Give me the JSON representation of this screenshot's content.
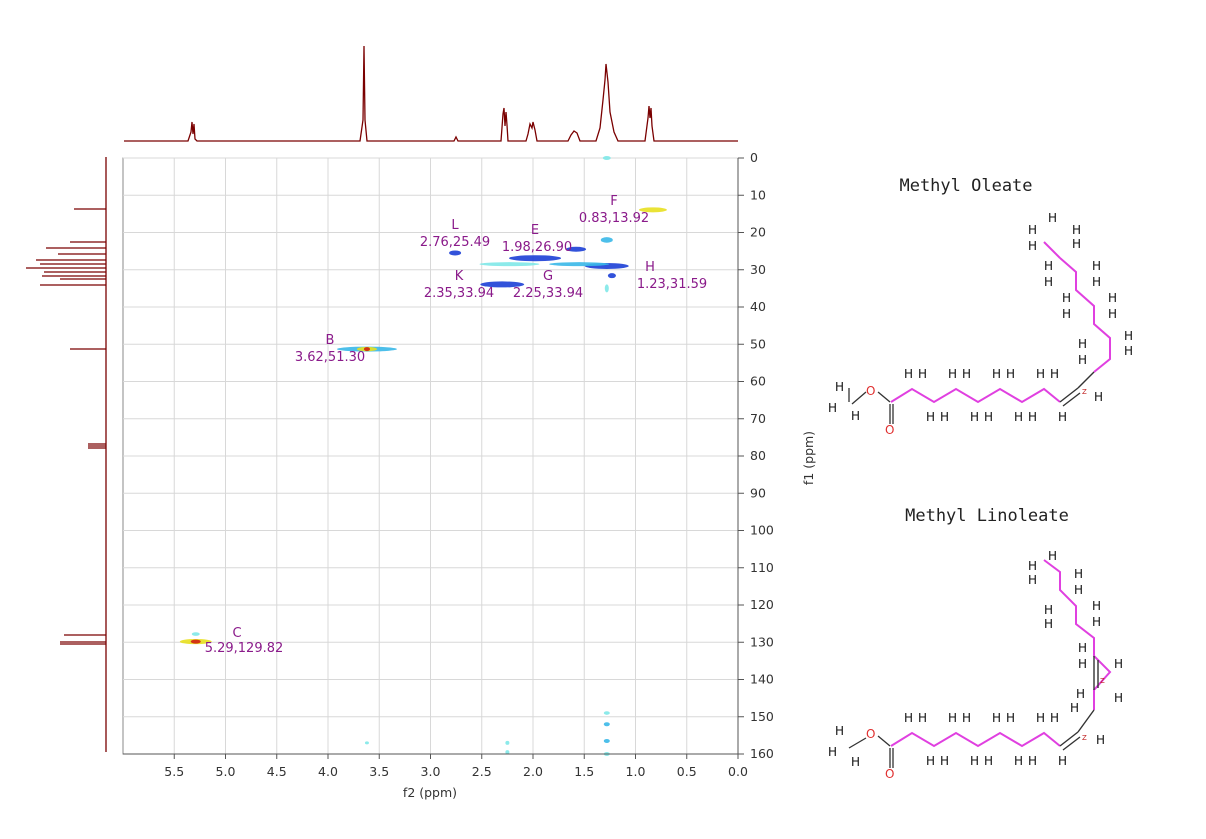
{
  "chart_data": {
    "type": "heatmap",
    "subtype": "2D HSQC NMR contour plot",
    "xlabel": "f2 (ppm)",
    "ylabel": "f1 (ppm)",
    "xlim": [
      6.0,
      0.0
    ],
    "ylim": [
      0,
      160
    ],
    "x_ticks": [
      "5.5",
      "5.0",
      "4.5",
      "4.0",
      "3.5",
      "3.0",
      "2.5",
      "2.0",
      "1.5",
      "1.0",
      "0.5",
      "0.0"
    ],
    "y_ticks": [
      "0",
      "10",
      "20",
      "30",
      "40",
      "50",
      "60",
      "70",
      "80",
      "90",
      "100",
      "110",
      "120",
      "130",
      "140",
      "150",
      "160"
    ],
    "grid": true,
    "peaks": [
      {
        "label": "F",
        "coords": "0.83,13.92",
        "x": 0.83,
        "y": 13.92
      },
      {
        "label": "L",
        "coords": "2.76,25.49",
        "x": 2.76,
        "y": 25.49
      },
      {
        "label": "E",
        "coords": "1.98,26.90",
        "x": 1.98,
        "y": 26.9
      },
      {
        "label": "H",
        "coords": "1.23,31.59",
        "x": 1.23,
        "y": 31.59
      },
      {
        "label": "K",
        "coords": "2.35,33.94",
        "x": 2.35,
        "y": 33.94
      },
      {
        "label": "G",
        "coords": "2.25,33.94",
        "x": 2.25,
        "y": 33.94
      },
      {
        "label": "B",
        "coords": "3.62,51.30",
        "x": 3.62,
        "y": 51.3
      },
      {
        "label": "C",
        "coords": "5.29,129.82",
        "x": 5.29,
        "y": 129.82
      }
    ],
    "colors": {
      "projection": "#7a0000",
      "peak_label": "#8a1a8a",
      "contour_core": "#1c3fd6",
      "contour_mid": "#3ab8e8",
      "contour_edge": "#7fe8e8",
      "contour_hot": "#e8e020",
      "contour_max": "#d02010",
      "bond_chain": "#e040e0"
    }
  },
  "molecules": {
    "oleate_title": "Methyl Oleate",
    "linoleate_title": "Methyl Linoleate"
  }
}
